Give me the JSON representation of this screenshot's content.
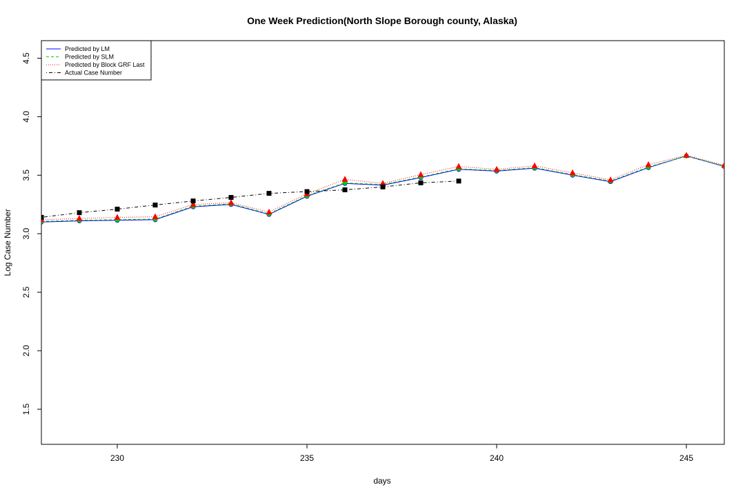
{
  "chart_data": {
    "type": "line",
    "title": "One Week Prediction(North Slope Borough county, Alaska)",
    "xlabel": "days",
    "ylabel": "Log Case Number",
    "xlim": [
      228,
      246
    ],
    "ylim": [
      1.2,
      4.65
    ],
    "x_ticks": [
      230,
      235,
      240,
      245
    ],
    "y_ticks": [
      1.5,
      2.0,
      2.5,
      3.0,
      3.5,
      4.0,
      4.5
    ],
    "grid": false,
    "legend_position": "top-left",
    "series": [
      {
        "name": "Predicted by LM",
        "color": "#0000ff",
        "line_style": "solid",
        "marker": "circle",
        "marker_color": "#0000ff",
        "x": [
          228,
          229,
          230,
          231,
          232,
          233,
          234,
          235,
          236,
          237,
          238,
          239,
          240,
          241,
          242,
          243,
          244,
          245,
          246
        ],
        "y": [
          3.1,
          3.11,
          3.115,
          3.12,
          3.23,
          3.25,
          3.165,
          3.32,
          3.43,
          3.415,
          3.48,
          3.55,
          3.535,
          3.56,
          3.5,
          3.445,
          3.565,
          3.665,
          3.575
        ]
      },
      {
        "name": "Predicted by SLM",
        "color": "#00cc00",
        "line_style": "dashed",
        "marker": "circle",
        "marker_color": "#00cc00",
        "x": [
          228,
          229,
          230,
          231,
          232,
          233,
          234,
          235,
          236,
          237,
          238,
          239,
          240,
          241,
          242,
          243,
          244,
          245,
          246
        ],
        "y": [
          3.105,
          3.115,
          3.12,
          3.125,
          3.235,
          3.255,
          3.17,
          3.325,
          3.435,
          3.42,
          3.485,
          3.555,
          3.54,
          3.565,
          3.505,
          3.45,
          3.57,
          3.665,
          3.578
        ]
      },
      {
        "name": "Predicted by Block GRF Last",
        "color": "#ff0000",
        "line_style": "dotted",
        "marker": "triangle",
        "marker_color": "#ff0000",
        "x": [
          228,
          229,
          230,
          231,
          232,
          233,
          234,
          235,
          236,
          237,
          238,
          239,
          240,
          241,
          242,
          243,
          244,
          245,
          246
        ],
        "y": [
          3.12,
          3.13,
          3.14,
          3.145,
          3.25,
          3.265,
          3.185,
          3.34,
          3.465,
          3.43,
          3.505,
          3.575,
          3.55,
          3.58,
          3.52,
          3.46,
          3.59,
          3.67,
          3.585
        ]
      },
      {
        "name": "Actual Case Number",
        "color": "#000000",
        "line_style": "dotdash",
        "marker": "square",
        "marker_color": "#000000",
        "x": [
          228,
          229,
          230,
          231,
          232,
          233,
          234,
          235,
          236,
          237,
          238,
          239
        ],
        "y": [
          3.14,
          3.18,
          3.21,
          3.245,
          3.28,
          3.31,
          3.345,
          3.36,
          3.375,
          3.4,
          3.435,
          3.45
        ]
      }
    ]
  }
}
